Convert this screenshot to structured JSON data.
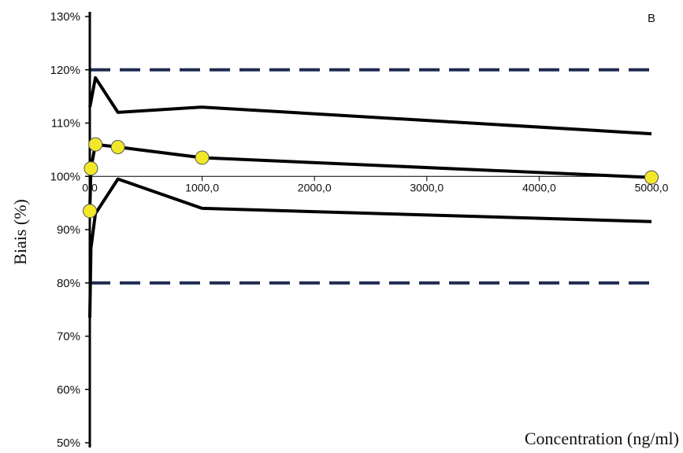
{
  "chart_data": {
    "type": "line",
    "panel_label": "B",
    "xlabel": "Concentration (ng/ml)",
    "ylabel": "Biais (%)",
    "xlim": [
      0,
      5000
    ],
    "ylim": [
      50,
      130
    ],
    "x_ticks": [
      0,
      1000,
      2000,
      3000,
      4000,
      5000
    ],
    "x_tick_labels": [
      "0,0",
      "1000,0",
      "2000,0",
      "3000,0",
      "4000,0",
      "5000,0"
    ],
    "y_ticks": [
      50,
      60,
      70,
      80,
      90,
      100,
      110,
      120,
      130
    ],
    "y_tick_labels": [
      "50%",
      "60%",
      "70%",
      "80%",
      "90%",
      "100%",
      "110%",
      "120%",
      "130%"
    ],
    "x_axis_crosses_at": 100,
    "grid": false,
    "limit_lines": [
      {
        "y": 120,
        "color": "#1f2a50",
        "style": "dashed"
      },
      {
        "y": 80,
        "color": "#1f2a50",
        "style": "dashed"
      }
    ],
    "series": [
      {
        "x": [
          0,
          10,
          50,
          250,
          1000,
          5000
        ],
        "y": [
          93.5,
          101.5,
          106,
          105.5,
          103.5,
          99.8
        ],
        "color": "#000000",
        "marker": "circle",
        "marker_color": "#f2e829"
      },
      {
        "x": [
          0,
          10,
          50,
          250,
          1000,
          5000
        ],
        "y": [
          113,
          114,
          118.5,
          112,
          113,
          108
        ],
        "color": "#000000",
        "marker": "none"
      },
      {
        "x": [
          0,
          10,
          50,
          250,
          1000,
          5000
        ],
        "y": [
          73.5,
          86.5,
          93,
          99.5,
          94,
          91.5
        ],
        "color": "#000000",
        "marker": "none"
      }
    ]
  }
}
